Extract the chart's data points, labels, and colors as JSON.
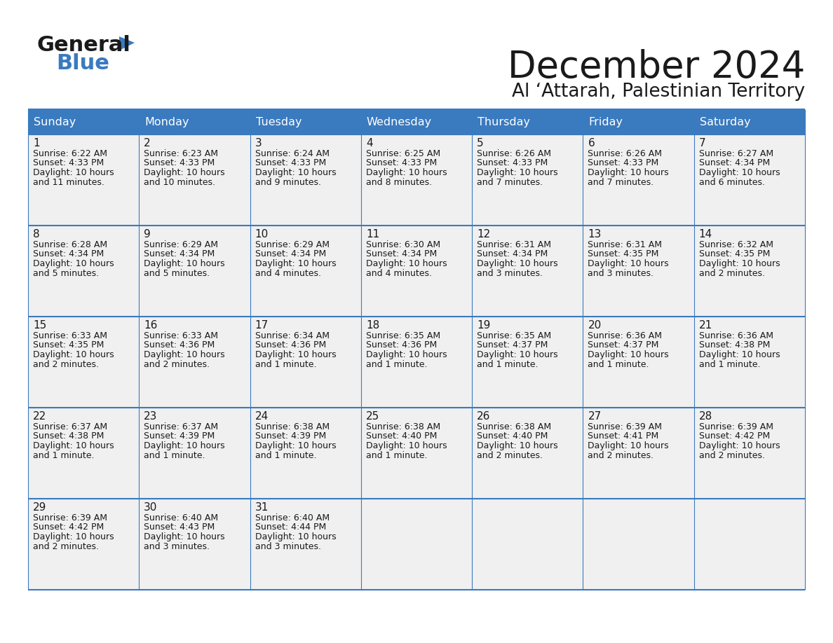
{
  "title": "December 2024",
  "subtitle": "Al ‘Attarah, Palestinian Territory",
  "header_color": "#3a7abf",
  "header_text_color": "#ffffff",
  "cell_bg_color": "#f0f0f0",
  "border_color": "#3a7abf",
  "days_of_week": [
    "Sunday",
    "Monday",
    "Tuesday",
    "Wednesday",
    "Thursday",
    "Friday",
    "Saturday"
  ],
  "calendar_data": [
    [
      {
        "day": 1,
        "sunrise": "6:22 AM",
        "sunset": "4:33 PM",
        "daylight": "10 hours and 11 minutes."
      },
      {
        "day": 2,
        "sunrise": "6:23 AM",
        "sunset": "4:33 PM",
        "daylight": "10 hours and 10 minutes."
      },
      {
        "day": 3,
        "sunrise": "6:24 AM",
        "sunset": "4:33 PM",
        "daylight": "10 hours and 9 minutes."
      },
      {
        "day": 4,
        "sunrise": "6:25 AM",
        "sunset": "4:33 PM",
        "daylight": "10 hours and 8 minutes."
      },
      {
        "day": 5,
        "sunrise": "6:26 AM",
        "sunset": "4:33 PM",
        "daylight": "10 hours and 7 minutes."
      },
      {
        "day": 6,
        "sunrise": "6:26 AM",
        "sunset": "4:33 PM",
        "daylight": "10 hours and 7 minutes."
      },
      {
        "day": 7,
        "sunrise": "6:27 AM",
        "sunset": "4:34 PM",
        "daylight": "10 hours and 6 minutes."
      }
    ],
    [
      {
        "day": 8,
        "sunrise": "6:28 AM",
        "sunset": "4:34 PM",
        "daylight": "10 hours and 5 minutes."
      },
      {
        "day": 9,
        "sunrise": "6:29 AM",
        "sunset": "4:34 PM",
        "daylight": "10 hours and 5 minutes."
      },
      {
        "day": 10,
        "sunrise": "6:29 AM",
        "sunset": "4:34 PM",
        "daylight": "10 hours and 4 minutes."
      },
      {
        "day": 11,
        "sunrise": "6:30 AM",
        "sunset": "4:34 PM",
        "daylight": "10 hours and 4 minutes."
      },
      {
        "day": 12,
        "sunrise": "6:31 AM",
        "sunset": "4:34 PM",
        "daylight": "10 hours and 3 minutes."
      },
      {
        "day": 13,
        "sunrise": "6:31 AM",
        "sunset": "4:35 PM",
        "daylight": "10 hours and 3 minutes."
      },
      {
        "day": 14,
        "sunrise": "6:32 AM",
        "sunset": "4:35 PM",
        "daylight": "10 hours and 2 minutes."
      }
    ],
    [
      {
        "day": 15,
        "sunrise": "6:33 AM",
        "sunset": "4:35 PM",
        "daylight": "10 hours and 2 minutes."
      },
      {
        "day": 16,
        "sunrise": "6:33 AM",
        "sunset": "4:36 PM",
        "daylight": "10 hours and 2 minutes."
      },
      {
        "day": 17,
        "sunrise": "6:34 AM",
        "sunset": "4:36 PM",
        "daylight": "10 hours and 1 minute."
      },
      {
        "day": 18,
        "sunrise": "6:35 AM",
        "sunset": "4:36 PM",
        "daylight": "10 hours and 1 minute."
      },
      {
        "day": 19,
        "sunrise": "6:35 AM",
        "sunset": "4:37 PM",
        "daylight": "10 hours and 1 minute."
      },
      {
        "day": 20,
        "sunrise": "6:36 AM",
        "sunset": "4:37 PM",
        "daylight": "10 hours and 1 minute."
      },
      {
        "day": 21,
        "sunrise": "6:36 AM",
        "sunset": "4:38 PM",
        "daylight": "10 hours and 1 minute."
      }
    ],
    [
      {
        "day": 22,
        "sunrise": "6:37 AM",
        "sunset": "4:38 PM",
        "daylight": "10 hours and 1 minute."
      },
      {
        "day": 23,
        "sunrise": "6:37 AM",
        "sunset": "4:39 PM",
        "daylight": "10 hours and 1 minute."
      },
      {
        "day": 24,
        "sunrise": "6:38 AM",
        "sunset": "4:39 PM",
        "daylight": "10 hours and 1 minute."
      },
      {
        "day": 25,
        "sunrise": "6:38 AM",
        "sunset": "4:40 PM",
        "daylight": "10 hours and 1 minute."
      },
      {
        "day": 26,
        "sunrise": "6:38 AM",
        "sunset": "4:40 PM",
        "daylight": "10 hours and 2 minutes."
      },
      {
        "day": 27,
        "sunrise": "6:39 AM",
        "sunset": "4:41 PM",
        "daylight": "10 hours and 2 minutes."
      },
      {
        "day": 28,
        "sunrise": "6:39 AM",
        "sunset": "4:42 PM",
        "daylight": "10 hours and 2 minutes."
      }
    ],
    [
      {
        "day": 29,
        "sunrise": "6:39 AM",
        "sunset": "4:42 PM",
        "daylight": "10 hours and 2 minutes."
      },
      {
        "day": 30,
        "sunrise": "6:40 AM",
        "sunset": "4:43 PM",
        "daylight": "10 hours and 3 minutes."
      },
      {
        "day": 31,
        "sunrise": "6:40 AM",
        "sunset": "4:44 PM",
        "daylight": "10 hours and 3 minutes."
      },
      null,
      null,
      null,
      null
    ]
  ]
}
